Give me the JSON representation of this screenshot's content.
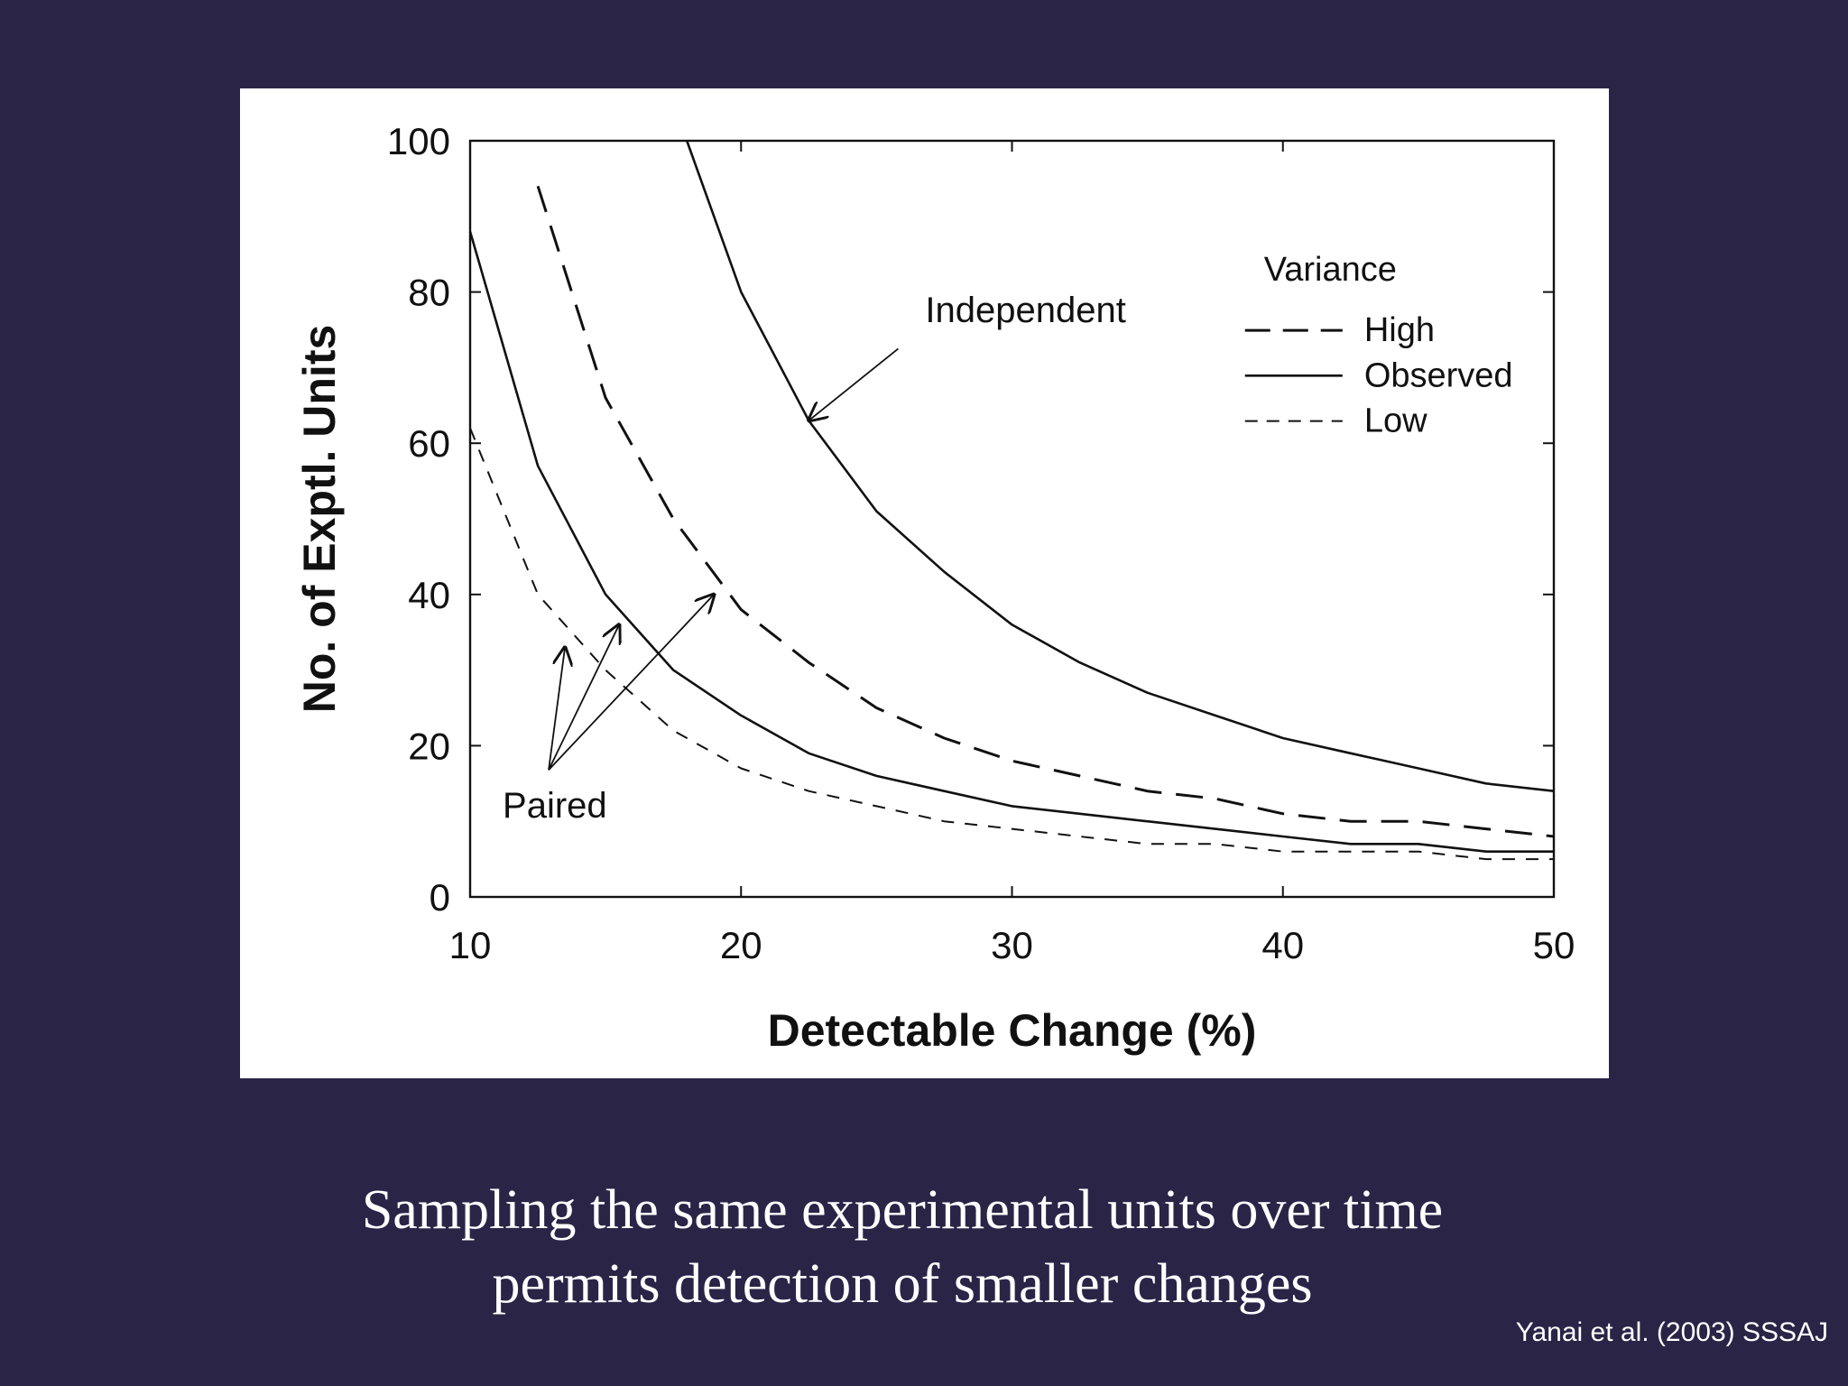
{
  "caption": {
    "line1": "Sampling the same experimental units over time",
    "line2": "permits detection of smaller changes"
  },
  "citation": "Yanai et al. (2003) SSSAJ",
  "colors": {
    "background": "#2a2447",
    "panel": "#ffffff",
    "ink": "#111111"
  },
  "chart_data": {
    "type": "line",
    "title": "",
    "xlabel": "Detectable Change (%)",
    "ylabel": "No. of Exptl. Units",
    "xlim": [
      10,
      50
    ],
    "ylim": [
      0,
      100
    ],
    "xticks": [
      10,
      20,
      30,
      40,
      50
    ],
    "yticks": [
      0,
      20,
      40,
      60,
      80,
      100
    ],
    "grid": false,
    "legend": {
      "title": "Variance",
      "placement": "top-right",
      "entries": [
        {
          "label": "High",
          "style": "long-dash"
        },
        {
          "label": "Observed",
          "style": "solid"
        },
        {
          "label": "Low",
          "style": "short-dash"
        }
      ]
    },
    "series": [
      {
        "group": "Independent",
        "variance": "Observed",
        "style": "solid",
        "x": [
          18,
          20,
          22.5,
          25,
          27.5,
          30,
          32.5,
          35,
          37.5,
          40,
          42.5,
          45,
          47.5,
          50
        ],
        "y": [
          100,
          80,
          63,
          51,
          43,
          36,
          31,
          27,
          24,
          21,
          19,
          17,
          15,
          14
        ]
      },
      {
        "group": "Paired",
        "variance": "High",
        "style": "long-dash",
        "x": [
          12.5,
          15,
          17.5,
          20,
          22.5,
          25,
          27.5,
          30,
          32.5,
          35,
          37.5,
          40,
          42.5,
          45,
          47.5,
          50
        ],
        "y": [
          94,
          66,
          50,
          38,
          31,
          25,
          21,
          18,
          16,
          14,
          13,
          11,
          10,
          10,
          9,
          8
        ]
      },
      {
        "group": "Paired",
        "variance": "Observed",
        "style": "solid",
        "x": [
          10,
          12.5,
          15,
          17.5,
          20,
          22.5,
          25,
          27.5,
          30,
          32.5,
          35,
          37.5,
          40,
          42.5,
          45,
          47.5,
          50
        ],
        "y": [
          88,
          57,
          40,
          30,
          24,
          19,
          16,
          14,
          12,
          11,
          10,
          9,
          8,
          7,
          7,
          6,
          6
        ]
      },
      {
        "group": "Paired",
        "variance": "Low",
        "style": "short-dash",
        "x": [
          10,
          12.5,
          15,
          17.5,
          20,
          22.5,
          25,
          27.5,
          30,
          32.5,
          35,
          37.5,
          40,
          42.5,
          45,
          47.5,
          50
        ],
        "y": [
          62,
          40,
          30,
          22,
          17,
          14,
          12,
          10,
          9,
          8,
          7,
          7,
          6,
          6,
          6,
          5,
          5
        ]
      }
    ],
    "annotations": [
      {
        "text": "Independent",
        "point_at": [
          22.5,
          63
        ]
      },
      {
        "text": "Paired",
        "point_at": [
          [
            13.5,
            33
          ],
          [
            15.5,
            36
          ],
          [
            19,
            40
          ]
        ]
      }
    ]
  }
}
